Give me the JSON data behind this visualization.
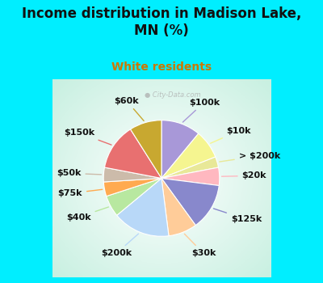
{
  "title": "Income distribution in Madison Lake,\nMN (%)",
  "subtitle": "White residents",
  "title_color": "#111111",
  "subtitle_color": "#cc7700",
  "bg_cyan": "#00eeff",
  "labels": [
    "$100k",
    "$10k",
    "> $200k",
    "$20k",
    "$125k",
    "$30k",
    "$200k",
    "$40k",
    "$75k",
    "$50k",
    "$150k",
    "$60k"
  ],
  "sizes": [
    11,
    8,
    3,
    5,
    13,
    8,
    16,
    6,
    4,
    4,
    13,
    9
  ],
  "colors": [
    "#a898d8",
    "#f5f590",
    "#e8e898",
    "#ffb8c0",
    "#8888cc",
    "#ffcc99",
    "#b8d8f8",
    "#b8e8a0",
    "#ffaa50",
    "#ccbbaa",
    "#e87070",
    "#c8a830"
  ],
  "label_fontsize": 8,
  "title_fontsize": 12,
  "subtitle_fontsize": 10
}
